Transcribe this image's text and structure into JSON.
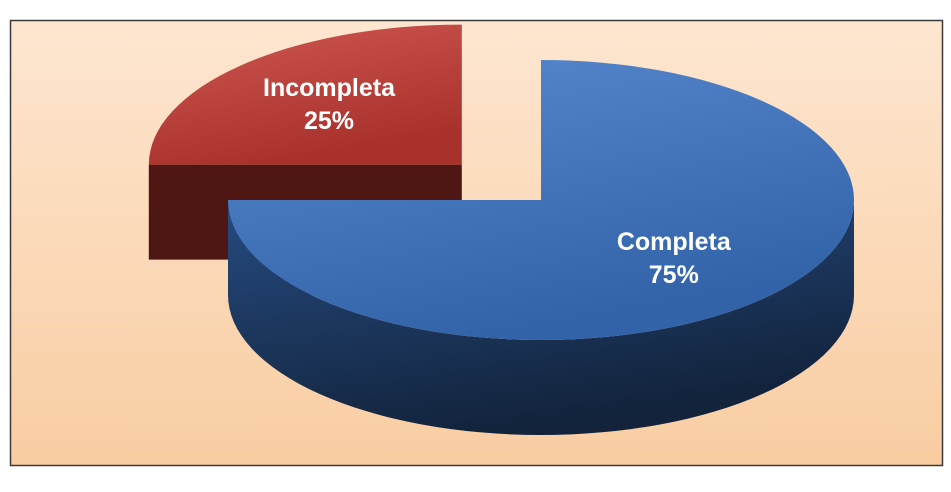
{
  "chart_data": {
    "type": "pie3d",
    "categories": [
      "Completa",
      "Incompleta"
    ],
    "values": [
      75,
      25
    ],
    "value_labels": [
      "75%",
      "25%"
    ],
    "colors": [
      "#3b74c6",
      "#c63a33"
    ],
    "explode": [
      0,
      1
    ]
  }
}
